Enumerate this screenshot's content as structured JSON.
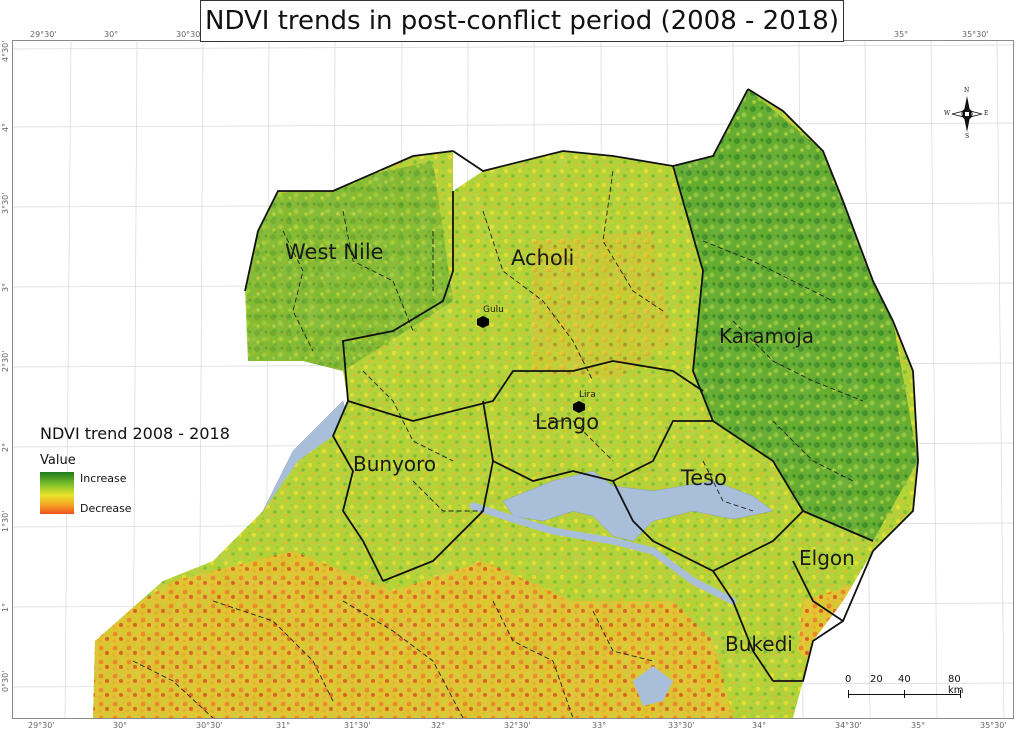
{
  "title": "NDVI trends in post-conflict period (2008 - 2018)",
  "legend": {
    "title": "NDVI trend 2008 - 2018",
    "value_label": "Value",
    "increase_label": "Increase",
    "decrease_label": "Decrease",
    "colors": {
      "increase": "#1f7a1f",
      "mid": "#e7e42a",
      "decrease": "#f05020"
    }
  },
  "regions": {
    "west_nile": "West Nile",
    "acholi": "Acholi",
    "karamoja": "Karamoja",
    "lango": "Lango",
    "bunyoro": "Bunyoro",
    "teso": "Teso",
    "elgon": "Elgon",
    "bukedi": "Bukedi"
  },
  "cities": {
    "gulu": "Gulu",
    "lira": "Lira"
  },
  "graticule": {
    "bottom_ticks": [
      "29°30'",
      "30°",
      "30°30'",
      "31°",
      "31°30'",
      "32°",
      "32°30'",
      "33°",
      "33°30'",
      "34°",
      "34°30'",
      "35°",
      "35°30'"
    ],
    "top_ticks": [
      "29°30'",
      "30°",
      "30°30'",
      "35°",
      "35°30'"
    ],
    "left_ticks": [
      "4°30'",
      "4°",
      "3°30'",
      "3°",
      "2°30'",
      "2°",
      "1°30'",
      "1°",
      "0°30'"
    ]
  },
  "scale_bar": {
    "labels": [
      "0",
      "20",
      "40",
      "80 km"
    ]
  },
  "north_arrow": {
    "n": "N",
    "s": "S",
    "e": "E",
    "w": "W"
  },
  "colors": {
    "water": "#a9bfd9",
    "boundary": "#111111"
  }
}
